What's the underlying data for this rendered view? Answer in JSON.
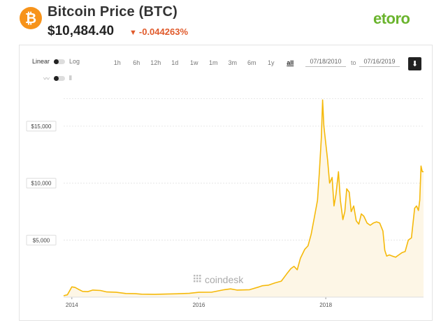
{
  "header": {
    "logo_symbol": "₿",
    "title": "Bitcoin Price (BTC)",
    "price": "$10,484.40",
    "change": "-0.044263%",
    "change_color": "#e05a2b",
    "brand": "etoro",
    "brand_color": "#6ab42d"
  },
  "controls": {
    "linear_label": "Linear",
    "log_label": "Log",
    "ranges": [
      "1h",
      "6h",
      "12h",
      "1d",
      "1w",
      "1m",
      "3m",
      "6m",
      "1y",
      "all"
    ],
    "active_range": "all",
    "date_from": "07/18/2010",
    "to_label": "to",
    "date_to": "07/16/2019",
    "download_icon": "download-arrow-icon"
  },
  "watermark": "coindesk",
  "chart_data": {
    "type": "area",
    "title": "",
    "xlabel": "",
    "ylabel": "",
    "line_color": "#f5b90a",
    "fill_color": "#fdf6e6",
    "y_ticks": [
      {
        "value": 5000,
        "label": "$5,000"
      },
      {
        "value": 10000,
        "label": "$10,000"
      },
      {
        "value": 15000,
        "label": "$15,000"
      }
    ],
    "x_ticks": [
      {
        "value": 2014.0,
        "label": "2014"
      },
      {
        "value": 2016.0,
        "label": "2016"
      },
      {
        "value": 2018.0,
        "label": "2018"
      }
    ],
    "xlim": [
      2013.87,
      2019.54
    ],
    "ylim": [
      0,
      17500
    ],
    "grid": "horizontal-dashed",
    "series": [
      {
        "x": [
          2013.87,
          2013.93,
          2013.97,
          2014.0,
          2014.05,
          2014.1,
          2014.17,
          2014.25,
          2014.33,
          2014.45,
          2014.55,
          2014.7,
          2014.85,
          2015.0,
          2015.1,
          2015.3,
          2015.5,
          2015.7,
          2015.85,
          2016.0,
          2016.2,
          2016.4,
          2016.5,
          2016.6,
          2016.8,
          2016.95,
          2017.0,
          2017.1,
          2017.2,
          2017.3,
          2017.38,
          2017.45,
          2017.5,
          2017.55,
          2017.6,
          2017.67,
          2017.72,
          2017.77,
          2017.82,
          2017.87,
          2017.9,
          2017.93,
          2017.95,
          2017.97,
          2018.0,
          2018.03,
          2018.06,
          2018.1,
          2018.13,
          2018.16,
          2018.2,
          2018.23,
          2018.27,
          2018.3,
          2018.33,
          2018.37,
          2018.4,
          2018.44,
          2018.48,
          2018.52,
          2018.56,
          2018.6,
          2018.65,
          2018.7,
          2018.75,
          2018.8,
          2018.85,
          2018.9,
          2018.93,
          2018.96,
          2019.0,
          2019.05,
          2019.1,
          2019.15,
          2019.2,
          2019.25,
          2019.3,
          2019.35,
          2019.4,
          2019.43,
          2019.46,
          2019.48,
          2019.5,
          2019.52,
          2019.54
        ],
        "y": [
          120,
          200,
          600,
          900,
          850,
          700,
          500,
          480,
          620,
          580,
          450,
          420,
          320,
          300,
          260,
          240,
          270,
          300,
          330,
          420,
          430,
          650,
          720,
          620,
          650,
          900,
          1000,
          1050,
          1250,
          1400,
          2000,
          2500,
          2700,
          2400,
          3400,
          4200,
          4500,
          5500,
          7000,
          8500,
          11000,
          14000,
          17300,
          15000,
          13500,
          12000,
          10000,
          10500,
          8000,
          9000,
          11000,
          8500,
          6800,
          7500,
          9500,
          9200,
          7500,
          8000,
          6700,
          6400,
          7300,
          7100,
          6500,
          6300,
          6500,
          6600,
          6500,
          5800,
          4100,
          3600,
          3700,
          3600,
          3500,
          3700,
          3900,
          4000,
          5000,
          5200,
          7800,
          8000,
          7600,
          8500,
          11500,
          11000,
          11000
        ]
      }
    ]
  }
}
